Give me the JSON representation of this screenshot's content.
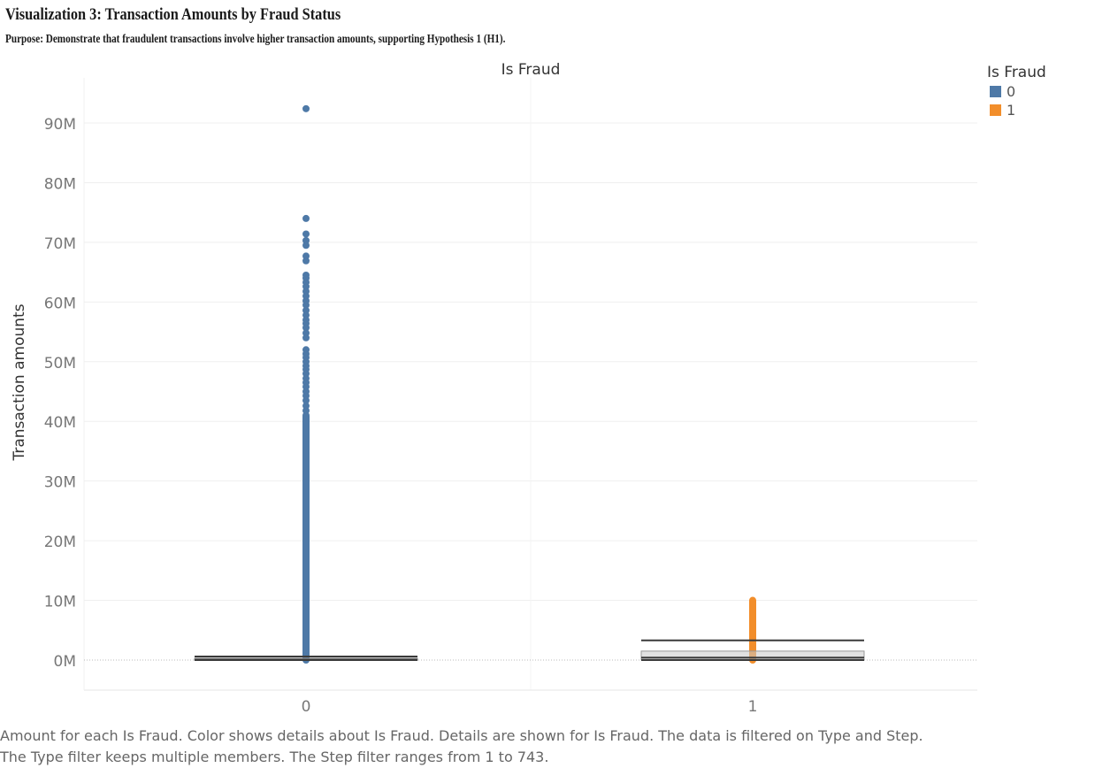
{
  "title": "Visualization 3: Transaction Amounts by Fraud Status",
  "subtitle": "Purpose: Demonstrate that fraudulent transactions involve higher transaction amounts, supporting Hypothesis 1 (H1).",
  "caption": {
    "line1": "Amount for each Is Fraud.  Color shows details about Is Fraud.  Details are shown for Is Fraud. The data is filtered on Type and Step.",
    "line2": "The Type filter keeps multiple members. The Step filter ranges from 1 to 743."
  },
  "legend": {
    "title": "Is Fraud",
    "items": [
      {
        "label": "0",
        "color": "#4e79a7"
      },
      {
        "label": "1",
        "color": "#f28e2b"
      }
    ]
  },
  "chart_data": {
    "type": "scatter",
    "title": "",
    "column_header": "Is Fraud",
    "xlabel": "",
    "ylabel": "Transaction amounts",
    "categories": [
      "0",
      "1"
    ],
    "y_ticks": [
      0,
      10000000,
      20000000,
      30000000,
      40000000,
      50000000,
      60000000,
      70000000,
      80000000,
      90000000
    ],
    "y_tick_labels": [
      "0M",
      "10M",
      "20M",
      "30M",
      "40M",
      "50M",
      "60M",
      "70M",
      "80M",
      "90M"
    ],
    "ylim": [
      -5000000,
      97000000
    ],
    "grid": true,
    "legend_position": "top-right",
    "series": [
      {
        "name": "0",
        "color": "#4e79a7",
        "dense_range": [
          0,
          41000000
        ],
        "outliers": [
          92400000,
          74000000,
          71400000,
          70300000,
          69500000,
          67700000,
          66900000,
          64500000,
          64000000,
          63300000,
          62600000,
          61800000,
          61000000,
          60200000,
          59500000,
          58600000,
          57800000,
          57000000,
          56400000,
          55700000,
          54800000,
          54000000,
          52000000,
          51300000,
          50700000,
          50000000,
          49300000,
          48700000,
          48000000,
          47200000,
          46500000,
          45800000,
          45000000,
          44300000,
          43500000,
          42600000,
          41800000
        ],
        "box": {
          "whisker_low": 0,
          "q1": 0,
          "median": 80000,
          "q3": 300000,
          "whisker_high": 600000
        }
      },
      {
        "name": "1",
        "color": "#f28e2b",
        "dense_range": [
          0,
          10000000
        ],
        "outliers": [],
        "box": {
          "whisker_low": 0,
          "q1": 100000,
          "median": 400000,
          "q3": 1500000,
          "whisker_high": 3300000
        }
      }
    ]
  }
}
